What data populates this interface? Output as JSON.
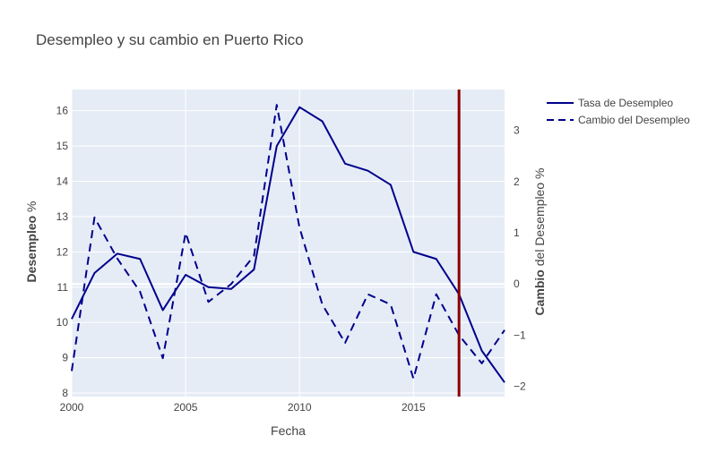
{
  "chart_data": {
    "type": "line",
    "title": "Desempleo y su cambio en Puerto Rico",
    "xlabel": "Fecha",
    "ylabel_bold": "Desempleo",
    "ylabel_rest": " %",
    "y2label_bold": "Cambio",
    "y2label_rest": " del Desempleo %",
    "xlim": [
      2000,
      2019
    ],
    "ylim": [
      7.9,
      16.6
    ],
    "y2lim": [
      -2.2,
      3.8
    ],
    "x_ticks": [
      "2000",
      "2005",
      "2010",
      "2015"
    ],
    "y_ticks": [
      "8",
      "9",
      "10",
      "11",
      "12",
      "13",
      "14",
      "15",
      "16"
    ],
    "y2_ticks": [
      "−2",
      "−1",
      "0",
      "1",
      "2",
      "3"
    ],
    "x": [
      2000,
      2001,
      2002,
      2003,
      2004,
      2005,
      2006,
      2007,
      2008,
      2009,
      2010,
      2011,
      2012,
      2013,
      2014,
      2015,
      2016,
      2017,
      2018,
      2019
    ],
    "series": [
      {
        "name": "Tasa de Desempleo",
        "axis": "y",
        "dash": "solid",
        "color": "#00008b",
        "values": [
          10.1,
          11.4,
          11.95,
          11.8,
          10.35,
          11.35,
          11.0,
          10.95,
          11.5,
          15.0,
          16.1,
          15.7,
          14.5,
          14.3,
          13.9,
          12.0,
          11.8,
          10.8,
          9.2,
          8.3
        ]
      },
      {
        "name": "Cambio del Desempleo",
        "axis": "y2",
        "dash": "dash",
        "color": "#00008b",
        "values": [
          -1.7,
          1.3,
          0.5,
          -0.15,
          -1.45,
          1.0,
          -0.35,
          0.0,
          0.55,
          3.5,
          1.1,
          -0.4,
          -1.15,
          -0.2,
          -0.4,
          -1.85,
          -0.2,
          -1.0,
          -1.55,
          -0.9
        ]
      }
    ],
    "vline": {
      "x": 2017,
      "color": "#8b0000"
    },
    "grid": true,
    "legend_position": "top-right",
    "plot_bgcolor": "#e5ecf6"
  }
}
